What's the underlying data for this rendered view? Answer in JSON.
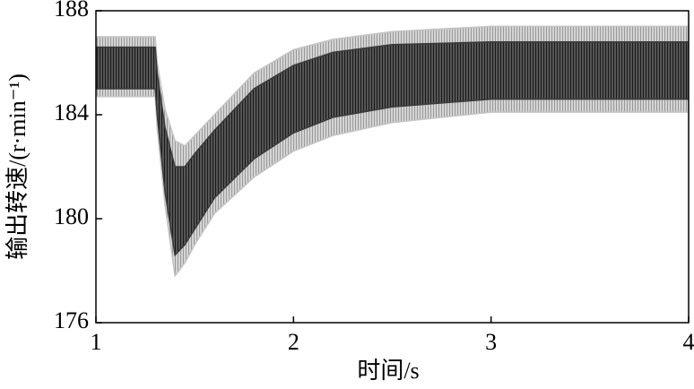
{
  "chart_data": {
    "type": "band",
    "xlabel": "时间/s",
    "ylabel": "输出转速/(r·min⁻¹)",
    "x": [
      1,
      1.3,
      1.31,
      1.35,
      1.4,
      1.45,
      1.5,
      1.6,
      1.8,
      2.0,
      2.2,
      2.5,
      3.0,
      3.5,
      4.0
    ],
    "series": [
      {
        "color": "#c4c4c4",
        "values": [
          187.0,
          187.0,
          186.0,
          184.2,
          183.0,
          182.8,
          183.2,
          184.0,
          185.6,
          186.5,
          186.9,
          187.2,
          187.4,
          187.4,
          187.4
        ]
      },
      {
        "color": "#c4c4c4",
        "values": [
          184.7,
          184.7,
          183.5,
          180.5,
          177.8,
          178.3,
          179.0,
          180.2,
          181.6,
          182.6,
          183.2,
          183.7,
          184.1,
          184.1,
          184.1
        ]
      },
      {
        "color": "#3a3a3a",
        "values": [
          186.6,
          186.6,
          185.6,
          183.5,
          182.0,
          182.0,
          182.5,
          183.4,
          185.0,
          185.9,
          186.4,
          186.7,
          186.8,
          186.8,
          186.8
        ]
      },
      {
        "color": "#3a3a3a",
        "values": [
          185.0,
          185.0,
          184.0,
          181.0,
          178.6,
          179.0,
          179.6,
          180.8,
          182.3,
          183.3,
          183.9,
          184.3,
          184.6,
          184.6,
          184.6
        ]
      }
    ],
    "xlim": [
      1,
      4
    ],
    "xticks": [
      1,
      2,
      3,
      4
    ],
    "ylim": [
      176,
      188
    ],
    "yticks": [
      176,
      180,
      184,
      188
    ]
  }
}
